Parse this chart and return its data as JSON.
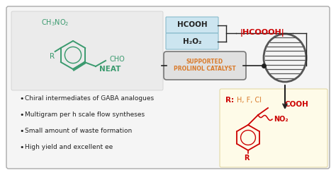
{
  "fig_width": 4.74,
  "fig_height": 2.48,
  "dpi": 100,
  "bg_color": "#ffffff",
  "panel_bg": "#f0f0f0",
  "green_color": "#3a9a6e",
  "orange_color": "#d97a2a",
  "red_color": "#cc0000",
  "dark_color": "#222222",
  "blue_bg": "#cce5f0",
  "yellow_bg": "#fefbe8",
  "bullet_points": [
    "Chiral intermediates of GABA analogues",
    "Multigram per h scale flow syntheses",
    "Small amount of waste formation",
    "High yield and excellent ee"
  ],
  "hcooh_text": "HCOOH",
  "h2o2_text": "H₂O₂",
  "peracid_text": "|HCOOOH|",
  "catalyst_text1": "SUPPORTED",
  "catalyst_text2": "PROLINOL CATALYST",
  "neat_text": "NEAT"
}
